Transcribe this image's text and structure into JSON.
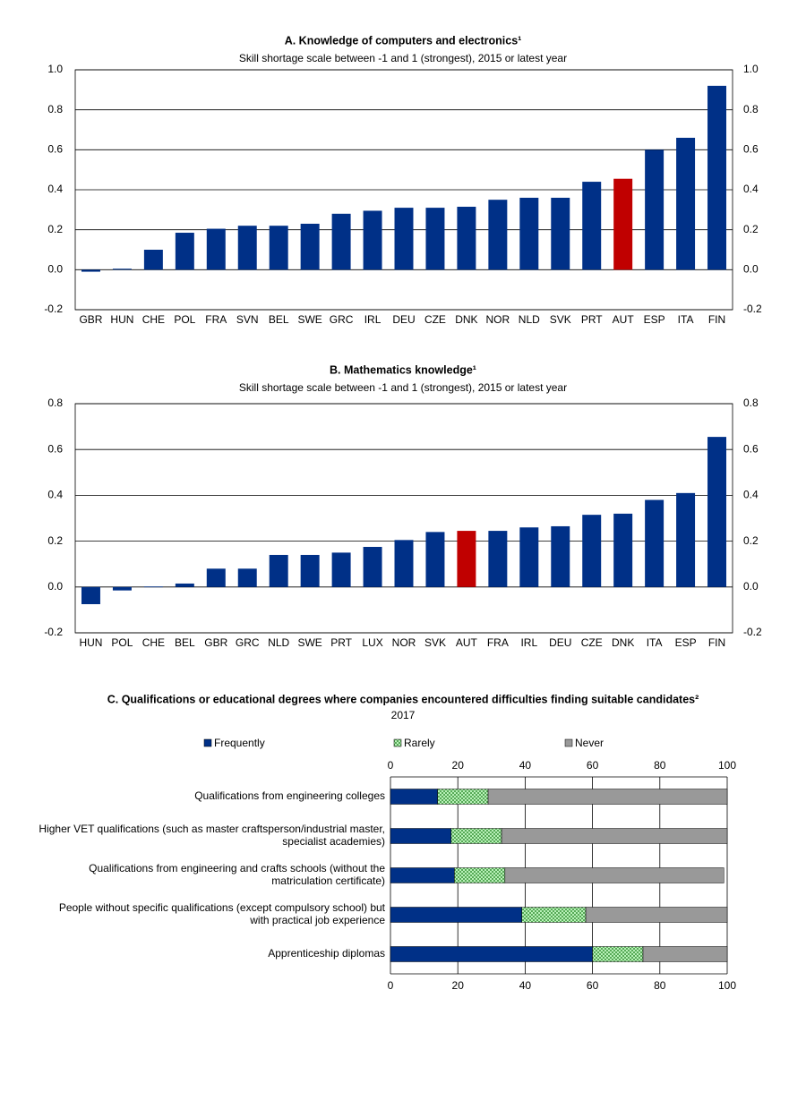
{
  "chart_data": [
    {
      "type": "bar",
      "title": "A. Knowledge of computers and electronics¹",
      "subtitle": "Skill shortage scale between -1 and 1 (strongest), 2015 or latest year",
      "categories": [
        "GBR",
        "HUN",
        "CHE",
        "POL",
        "FRA",
        "SVN",
        "BEL",
        "SWE",
        "GRC",
        "IRL",
        "DEU",
        "CZE",
        "DNK",
        "NOR",
        "NLD",
        "SVK",
        "PRT",
        "AUT",
        "ESP",
        "ITA",
        "FIN"
      ],
      "values": [
        -0.01,
        0.005,
        0.1,
        0.185,
        0.205,
        0.22,
        0.22,
        0.23,
        0.28,
        0.295,
        0.31,
        0.31,
        0.315,
        0.35,
        0.36,
        0.36,
        0.44,
        0.455,
        0.6,
        0.66,
        0.92
      ],
      "colors": [
        "#003087",
        "#003087",
        "#003087",
        "#003087",
        "#003087",
        "#003087",
        "#003087",
        "#003087",
        "#003087",
        "#003087",
        "#003087",
        "#003087",
        "#003087",
        "#003087",
        "#003087",
        "#003087",
        "#003087",
        "#c00000",
        "#003087",
        "#003087",
        "#003087"
      ],
      "ylim": [
        -0.2,
        1.0
      ],
      "yticks": [
        {
          "value": 1,
          "label": "1.0"
        },
        0.8,
        0.6,
        0.4,
        0.2,
        {
          "value": 0,
          "label": "0.0"
        },
        -0.2
      ],
      "grid": true
    },
    {
      "type": "bar",
      "title": "B. Mathematics knowledge¹",
      "subtitle": "Skill shortage scale between -1 and 1 (strongest), 2015 or latest year",
      "categories": [
        "HUN",
        "POL",
        "CHE",
        "BEL",
        "GBR",
        "GRC",
        "NLD",
        "SWE",
        "PRT",
        "LUX",
        "NOR",
        "SVK",
        "AUT",
        "FRA",
        "IRL",
        "DEU",
        "CZE",
        "DNK",
        "ITA",
        "ESP",
        "FIN"
      ],
      "values": [
        -0.075,
        -0.015,
        0.002,
        0.015,
        0.08,
        0.08,
        0.14,
        0.14,
        0.15,
        0.175,
        0.205,
        0.24,
        0.245,
        0.245,
        0.26,
        0.265,
        0.315,
        0.32,
        0.38,
        0.41,
        0.655
      ],
      "colors": [
        "#003087",
        "#003087",
        "#003087",
        "#003087",
        "#003087",
        "#003087",
        "#003087",
        "#003087",
        "#003087",
        "#003087",
        "#003087",
        "#003087",
        "#c00000",
        "#003087",
        "#003087",
        "#003087",
        "#003087",
        "#003087",
        "#003087",
        "#003087",
        "#003087"
      ],
      "ylim": [
        -0.2,
        0.8
      ],
      "yticks": [
        0.8,
        0.6,
        0.4,
        0.2,
        {
          "value": 0,
          "label": "0.0"
        },
        -0.2
      ],
      "grid": true
    },
    {
      "type": "stacked_barh",
      "title": "C. Qualifications or educational degrees where companies encountered difficulties finding suitable candidates²",
      "subtitle": "2017",
      "categories": [
        "Qualifications from engineering colleges",
        "Higher VET qualifications (such as master craftsperson/industrial master,\nspecialist academies)",
        "Qualifications from engineering and crafts schools (without the\nmatriculation certificate)",
        "People without specific qualifications (except compulsory school) but\nwith practical job experience",
        "Apprenticeship diplomas"
      ],
      "series": [
        {
          "name": "Frequently",
          "color": "#003087",
          "values": [
            14,
            18,
            19,
            39,
            60
          ]
        },
        {
          "name": "Rarely",
          "color": "#ccffcc",
          "hatch": true,
          "values": [
            15,
            15,
            15,
            19,
            15
          ]
        },
        {
          "name": "Never",
          "color": "#999999",
          "values": [
            71,
            67,
            65,
            42,
            25
          ]
        }
      ],
      "xlim": [
        0,
        100
      ],
      "xticks": [
        0,
        20,
        40,
        60,
        80,
        100
      ],
      "grid": true
    }
  ]
}
